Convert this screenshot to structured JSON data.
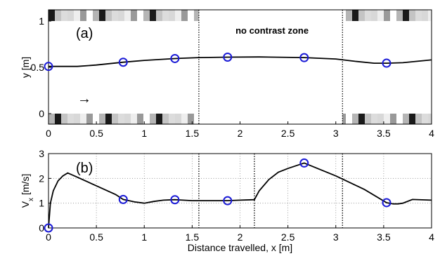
{
  "chart_data": [
    {
      "type": "line",
      "panel_label": "(a)",
      "xlabel": "",
      "ylabel": "y [m]",
      "xlim": [
        0,
        4
      ],
      "ylim": [
        0,
        1
      ],
      "x_ticks": [
        "0",
        "0.5",
        "1",
        "1.5",
        "2",
        "2.5",
        "3",
        "3.5",
        "4"
      ],
      "y_ticks": [
        "0",
        "0.5",
        "1"
      ],
      "annotation": "no contrast zone",
      "arrow_symbol": "→",
      "no_contrast_zone_x": [
        1.57,
        3.07
      ],
      "series": [
        {
          "style": "line",
          "color": "#000000",
          "x": [
            0,
            0.3,
            0.5,
            0.78,
            1.0,
            1.32,
            1.57,
            1.87,
            2.2,
            2.67,
            3.0,
            3.2,
            3.4,
            3.53,
            3.7,
            4.0
          ],
          "y": [
            0.51,
            0.51,
            0.525,
            0.555,
            0.575,
            0.595,
            0.605,
            0.61,
            0.612,
            0.605,
            0.59,
            0.565,
            0.545,
            0.545,
            0.55,
            0.58
          ]
        },
        {
          "style": "markers",
          "marker": "circle",
          "color": "#1a1ad6",
          "x": [
            0,
            0.78,
            1.32,
            1.87,
            2.67,
            3.53
          ],
          "y": [
            0.51,
            0.555,
            0.595,
            0.61,
            0.605,
            0.545
          ]
        }
      ]
    },
    {
      "type": "line",
      "panel_label": "(b)",
      "xlabel": "Distance travelled, x [m]",
      "ylabel": "V_x [m/s]",
      "ylabel_main": "V",
      "ylabel_sub": "x",
      "ylabel_unit": " [m/s]",
      "xlim": [
        0,
        4
      ],
      "ylim": [
        0,
        3
      ],
      "x_ticks": [
        "0",
        "0.5",
        "1",
        "1.5",
        "2",
        "2.5",
        "3",
        "3.5",
        "4"
      ],
      "y_ticks": [
        "0",
        "1",
        "2",
        "3"
      ],
      "grid": true,
      "dotted_verticals_x": [
        1.57,
        2.15,
        3.07
      ],
      "series": [
        {
          "style": "line",
          "color": "#000000",
          "x": [
            0,
            0.02,
            0.05,
            0.1,
            0.15,
            0.2,
            0.3,
            0.5,
            0.7,
            0.78,
            0.9,
            1.0,
            1.1,
            1.2,
            1.32,
            1.5,
            1.7,
            1.87,
            2.0,
            2.15,
            2.2,
            2.3,
            2.4,
            2.5,
            2.67,
            3.0,
            3.3,
            3.53,
            3.6,
            3.65,
            3.7,
            3.8,
            4.0
          ],
          "y": [
            0,
            1.0,
            1.5,
            1.9,
            2.1,
            2.22,
            2.05,
            1.7,
            1.35,
            1.15,
            1.05,
            1.0,
            1.07,
            1.12,
            1.14,
            1.1,
            1.1,
            1.1,
            1.12,
            1.14,
            1.5,
            1.95,
            2.25,
            2.4,
            2.62,
            2.1,
            1.55,
            1.02,
            0.97,
            0.97,
            1.0,
            1.15,
            1.12
          ]
        },
        {
          "style": "markers",
          "marker": "circle",
          "color": "#1a1ad6",
          "x": [
            0,
            0.78,
            1.32,
            1.87,
            2.67,
            3.53
          ],
          "y": [
            0,
            1.15,
            1.14,
            1.1,
            2.62,
            1.02
          ]
        }
      ]
    }
  ]
}
